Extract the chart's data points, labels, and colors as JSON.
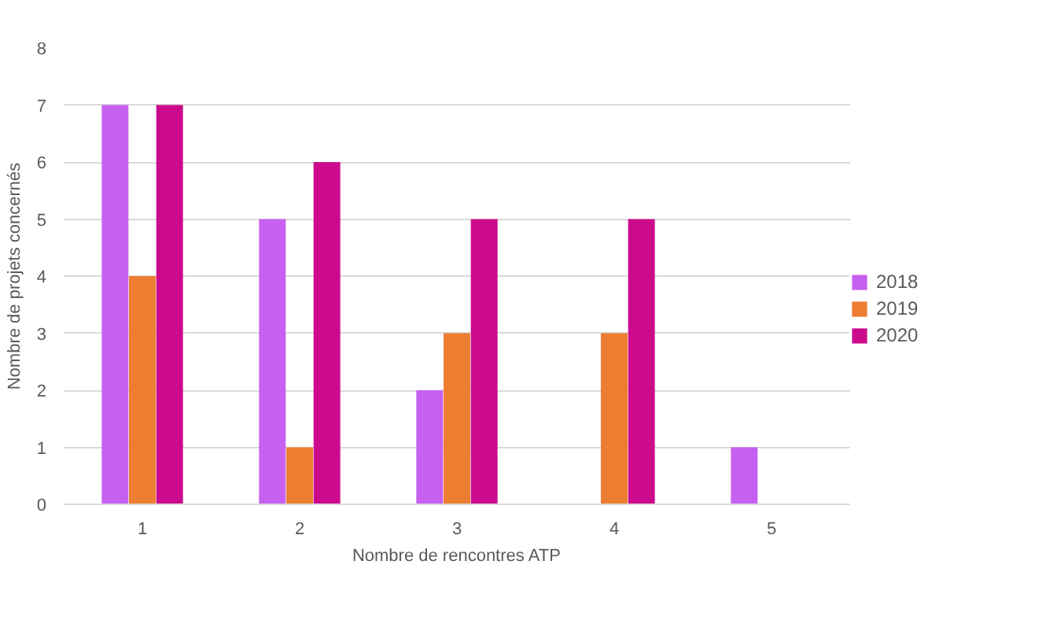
{
  "chart_data": {
    "type": "bar",
    "xlabel": "Nombre de rencontres ATP",
    "ylabel": "Nombre de projets concernés",
    "categories": [
      "1",
      "2",
      "3",
      "4",
      "5"
    ],
    "series": [
      {
        "name": "2018",
        "color": "#c660f0",
        "values": [
          7,
          5,
          2,
          null,
          1
        ]
      },
      {
        "name": "2019",
        "color": "#ed7d31",
        "values": [
          4,
          1,
          3,
          3,
          null
        ]
      },
      {
        "name": "2020",
        "color": "#cc0a8c",
        "values": [
          7,
          6,
          5,
          5,
          null
        ]
      }
    ],
    "ylim": [
      0,
      8
    ],
    "yticks": [
      0,
      1,
      2,
      3,
      4,
      5,
      6,
      7,
      8
    ],
    "grid": "y",
    "legend": "right"
  }
}
